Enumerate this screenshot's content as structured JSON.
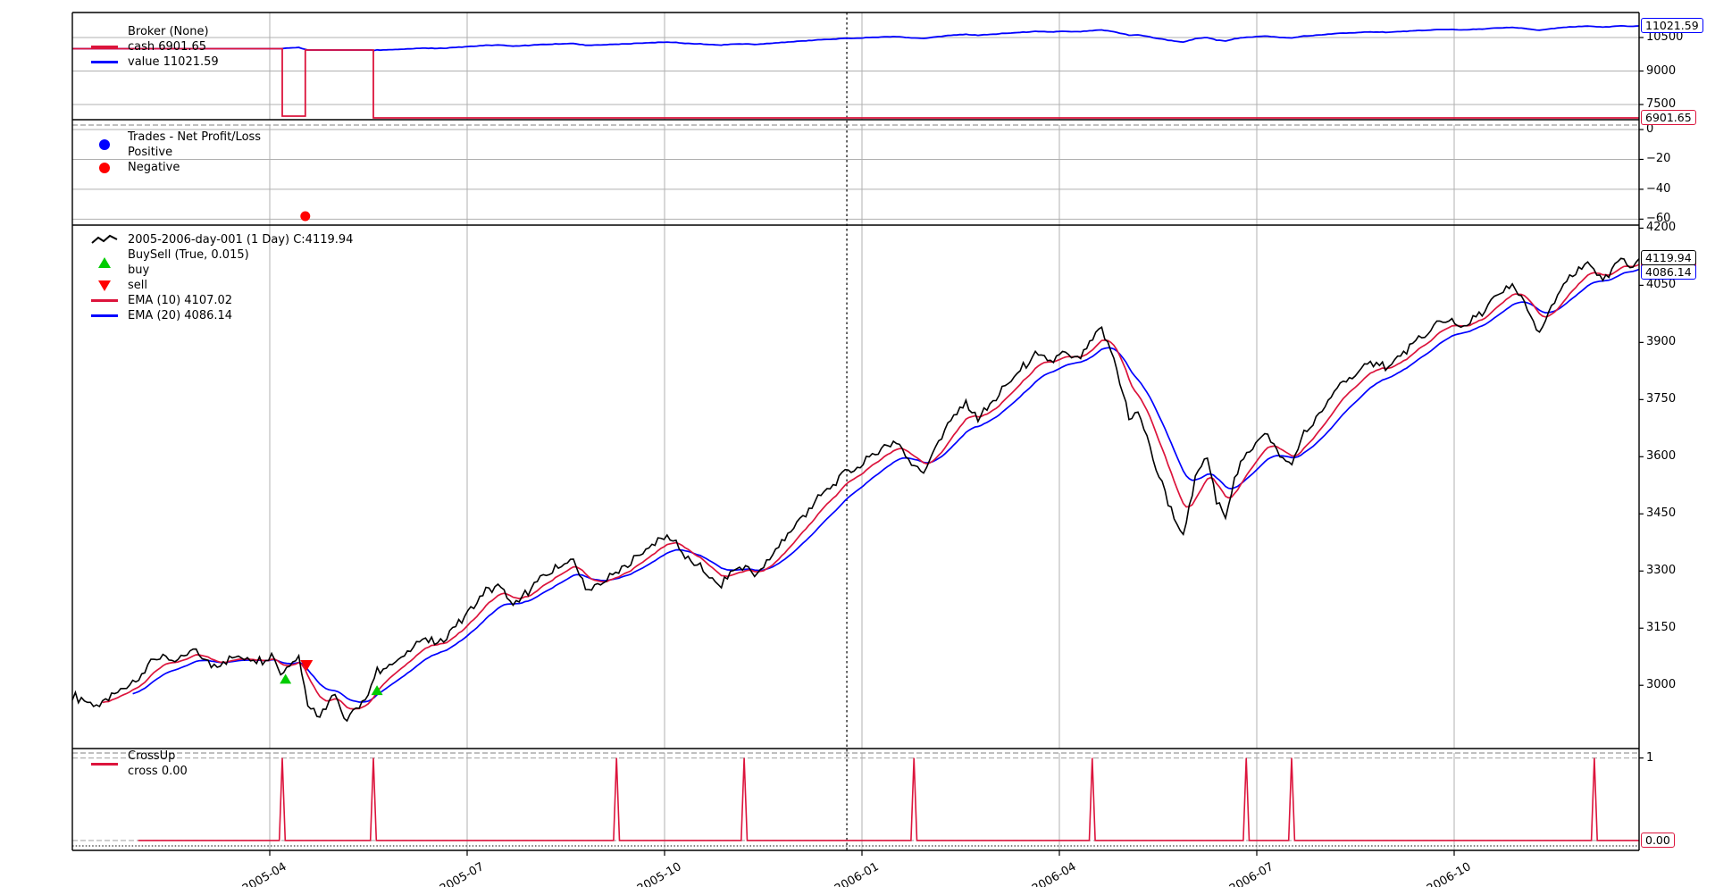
{
  "colors": {
    "cash_line": "#dc143c",
    "value_line": "#0000ff",
    "price_line": "#000000",
    "ema10_line": "#dc143c",
    "ema20_line": "#0000ff",
    "buy_marker": "#00cc00",
    "sell_marker": "#ff0000",
    "positive_dot": "#0000ff",
    "negative_dot": "#ff0000",
    "cross_line": "#dc143c",
    "grid": "#b0b0b0",
    "separator": "#000000"
  },
  "panels": {
    "broker": {
      "legend": {
        "title": "Broker (None)",
        "cash_label": "cash 6901.65",
        "value_label": "value 11021.59"
      },
      "tags": {
        "value": "11021.59",
        "cash": "6901.65"
      }
    },
    "trades": {
      "legend": {
        "title": "Trades - Net Profit/Loss",
        "positive_label": "Positive",
        "negative_label": "Negative"
      }
    },
    "price": {
      "legend": {
        "title": "2005-2006-day-001 (1 Day) C:4119.94",
        "buysell_label": "BuySell (True, 0.015)",
        "buy_label": "buy",
        "sell_label": "sell",
        "ema10_label": "EMA (10) 4107.02",
        "ema20_label": "EMA (20) 4086.14"
      },
      "tags": {
        "close": "4119.94",
        "ema10": "4107.02",
        "ema20": "4086.14"
      }
    },
    "crossup": {
      "legend": {
        "title": "CrossUp",
        "subtitle": "cross 0.00"
      },
      "tags": {
        "level": "0.00"
      }
    }
  },
  "chart_data": {
    "type": "line",
    "x_unit": "months since 2005-01 (daily series)",
    "x_domain": [
      0,
      23.81
    ],
    "x_ticks": [
      {
        "m": 3,
        "label": "2005-04"
      },
      {
        "m": 6,
        "label": "2005-07"
      },
      {
        "m": 9,
        "label": "2005-10"
      },
      {
        "m": 12,
        "label": "2006-01"
      },
      {
        "m": 15,
        "label": "2006-04"
      },
      {
        "m": 18,
        "label": "2006-07"
      },
      {
        "m": 21,
        "label": "2006-10"
      }
    ],
    "year_separator_m": 11.77,
    "broker": {
      "ylim": [
        6820,
        11620
      ],
      "yticks": [
        10500,
        9000,
        7500
      ],
      "cash_last": 6901.65,
      "value_last": 11021.59,
      "cash_steps": [
        [
          0,
          10000
        ],
        [
          3.19,
          6980
        ],
        [
          3.54,
          9942
        ],
        [
          4.575,
          6901.65
        ]
      ],
      "value_segments": [
        {
          "from": 0,
          "to": 3.19,
          "const": 10000
        },
        {
          "from": 3.19,
          "to": 3.54,
          "offset": 6980
        },
        {
          "from": 3.54,
          "to": 4.575,
          "const": 9942
        },
        {
          "from": 4.575,
          "to": 23.81,
          "offset": 6901.65
        }
      ]
    },
    "trades": {
      "ylim": [
        -64,
        3
      ],
      "yticks": [
        0,
        -20,
        -40,
        -60
      ],
      "points": [
        {
          "m": 3.54,
          "pnl": -58,
          "kind": "negative"
        }
      ]
    },
    "price": {
      "ylim": [
        2834,
        4208
      ],
      "yticks": [
        4200,
        4050,
        3900,
        3750,
        3600,
        3450,
        3300,
        3150,
        3000
      ],
      "close_last": 4119.94,
      "ema10_last": 4107.02,
      "ema20_last": 4086.14,
      "ema10_period": 10,
      "ema20_period": 20,
      "buy_markers": [
        [
          3.24,
          3016
        ],
        [
          4.63,
          2986
        ]
      ],
      "sell_markers": [
        [
          3.56,
          3052
        ]
      ],
      "keypoints": [
        [
          0,
          2975
        ],
        [
          0.39,
          2945
        ],
        [
          0.67,
          2980
        ],
        [
          1.0,
          3010
        ],
        [
          1.21,
          3075
        ],
        [
          1.62,
          3060
        ],
        [
          1.82,
          3090
        ],
        [
          2.16,
          3050
        ],
        [
          2.5,
          3075
        ],
        [
          2.84,
          3065
        ],
        [
          3.04,
          3080
        ],
        [
          3.19,
          3025
        ],
        [
          3.32,
          3060
        ],
        [
          3.45,
          3078
        ],
        [
          3.56,
          2962
        ],
        [
          3.72,
          2920
        ],
        [
          3.86,
          2950
        ],
        [
          3.99,
          2985
        ],
        [
          4.12,
          2900
        ],
        [
          4.26,
          2925
        ],
        [
          4.4,
          2945
        ],
        [
          4.55,
          3000
        ],
        [
          4.63,
          3040
        ],
        [
          4.94,
          3060
        ],
        [
          5.28,
          3120
        ],
        [
          5.55,
          3110
        ],
        [
          5.96,
          3180
        ],
        [
          6.3,
          3250
        ],
        [
          6.5,
          3260
        ],
        [
          6.71,
          3205
        ],
        [
          7.05,
          3270
        ],
        [
          7.39,
          3310
        ],
        [
          7.59,
          3330
        ],
        [
          7.86,
          3245
        ],
        [
          8.13,
          3280
        ],
        [
          8.4,
          3310
        ],
        [
          8.67,
          3350
        ],
        [
          8.95,
          3390
        ],
        [
          9.15,
          3380
        ],
        [
          9.35,
          3330
        ],
        [
          9.62,
          3300
        ],
        [
          9.83,
          3255
        ],
        [
          10.03,
          3300
        ],
        [
          10.24,
          3310
        ],
        [
          10.44,
          3290
        ],
        [
          10.71,
          3360
        ],
        [
          11.12,
          3450
        ],
        [
          11.46,
          3510
        ],
        [
          11.73,
          3560
        ],
        [
          12.0,
          3580
        ],
        [
          12.27,
          3620
        ],
        [
          12.54,
          3640
        ],
        [
          12.75,
          3580
        ],
        [
          12.95,
          3560
        ],
        [
          13.22,
          3660
        ],
        [
          13.56,
          3740
        ],
        [
          13.77,
          3700
        ],
        [
          14.1,
          3770
        ],
        [
          14.38,
          3820
        ],
        [
          14.65,
          3870
        ],
        [
          14.85,
          3850
        ],
        [
          15.05,
          3870
        ],
        [
          15.26,
          3850
        ],
        [
          15.46,
          3900
        ],
        [
          15.63,
          3940
        ],
        [
          15.8,
          3870
        ],
        [
          15.94,
          3790
        ],
        [
          16.07,
          3690
        ],
        [
          16.21,
          3720
        ],
        [
          16.35,
          3640
        ],
        [
          16.48,
          3560
        ],
        [
          16.62,
          3500
        ],
        [
          16.75,
          3440
        ],
        [
          16.89,
          3390
        ],
        [
          17.09,
          3560
        ],
        [
          17.26,
          3600
        ],
        [
          17.39,
          3480
        ],
        [
          17.53,
          3450
        ],
        [
          17.7,
          3560
        ],
        [
          17.91,
          3620
        ],
        [
          18.11,
          3670
        ],
        [
          18.31,
          3610
        ],
        [
          18.52,
          3580
        ],
        [
          18.72,
          3660
        ],
        [
          18.99,
          3720
        ],
        [
          19.26,
          3790
        ],
        [
          19.54,
          3820
        ],
        [
          19.81,
          3850
        ],
        [
          20.01,
          3830
        ],
        [
          20.21,
          3870
        ],
        [
          20.49,
          3910
        ],
        [
          20.76,
          3950
        ],
        [
          20.96,
          3960
        ],
        [
          21.16,
          3940
        ],
        [
          21.37,
          3970
        ],
        [
          21.64,
          4020
        ],
        [
          21.91,
          4050
        ],
        [
          22.11,
          3990
        ],
        [
          22.28,
          3920
        ],
        [
          22.45,
          3980
        ],
        [
          22.66,
          4050
        ],
        [
          22.86,
          4080
        ],
        [
          23.06,
          4110
        ],
        [
          23.27,
          4060
        ],
        [
          23.4,
          4090
        ],
        [
          23.54,
          4120
        ],
        [
          23.67,
          4100
        ],
        [
          23.81,
          4119.94
        ]
      ]
    },
    "crossup": {
      "ylim": [
        -0.12,
        1.06
      ],
      "yticks": [
        1
      ],
      "level": 0.0,
      "line_start_m": 1.0,
      "spikes_m": [
        3.19,
        4.575,
        8.27,
        10.21,
        12.79,
        15.5,
        17.84,
        18.53,
        23.13
      ]
    }
  }
}
